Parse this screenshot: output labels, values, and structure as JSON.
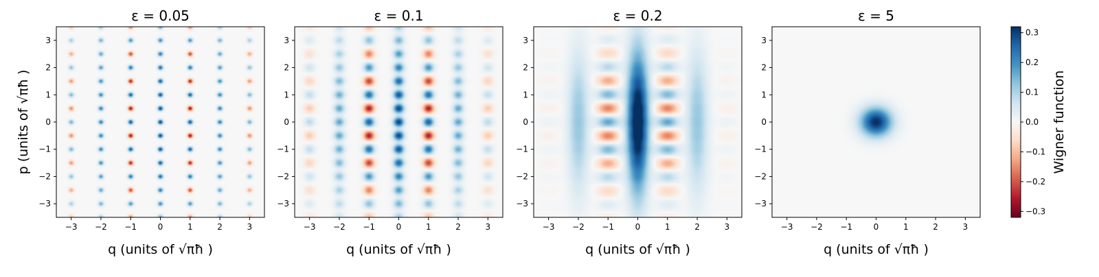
{
  "chart_data": {
    "type": "heatmap",
    "panels": [
      {
        "title": "ε = 0.05",
        "epsilon": 0.05
      },
      {
        "title": "ε = 0.1",
        "epsilon": 0.1
      },
      {
        "title": "ε = 0.2",
        "epsilon": 0.2
      },
      {
        "title": "ε = 5",
        "epsilon": 5
      }
    ],
    "xlabel": "q (units of √πħ )",
    "ylabel": "p (units of √πħ )",
    "xlim": [
      -3.5,
      3.5
    ],
    "ylim": [
      -3.5,
      3.5
    ],
    "xticks": [
      -3,
      -2,
      -1,
      0,
      1,
      2,
      3
    ],
    "yticks": [
      -3,
      -2,
      -1,
      0,
      1,
      2,
      3
    ],
    "colorbar": {
      "label": "Wigner function",
      "range": [
        -0.32,
        0.32
      ],
      "ticks": [
        -0.3,
        -0.2,
        -0.1,
        0.0,
        0.1,
        0.2,
        0.3
      ],
      "tick_labels": [
        "−0.3",
        "−0.2",
        "−0.1",
        "0.0",
        "0.1",
        "0.2",
        "0.3"
      ],
      "colormap": "RdBu",
      "colors": [
        "#67001f",
        "#b2182b",
        "#d6604d",
        "#f4a582",
        "#fddbc7",
        "#f7f7f7",
        "#d1e5f0",
        "#92c5de",
        "#4393c3",
        "#2166ac",
        "#053061"
      ]
    },
    "grid": false
  }
}
